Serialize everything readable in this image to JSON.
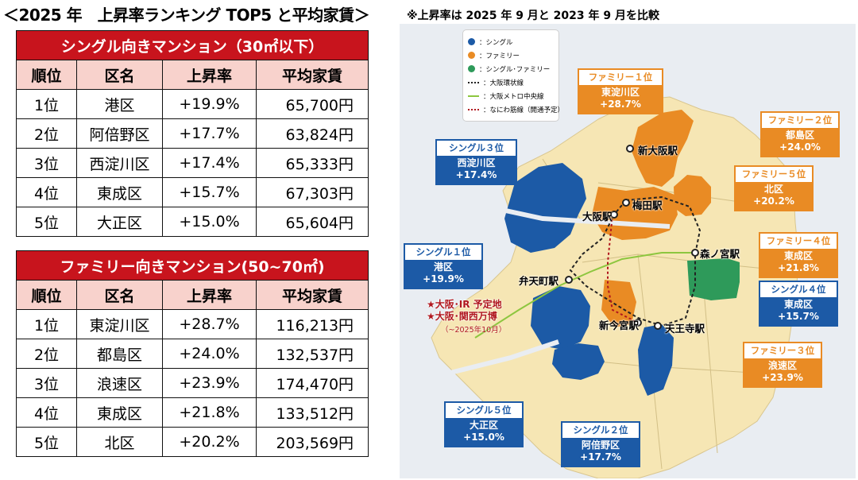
{
  "header": {
    "title": "＜2025 年　上昇率ランキング TOP5 と平均家賃＞",
    "note": "※上昇率は 2025 年 9 月と 2023 年 9 月を比較"
  },
  "single_table": {
    "caption": "シングル向きマンション（30㎡以下）",
    "columns": [
      "順位",
      "区名",
      "上昇率",
      "平均家賃"
    ],
    "rows": [
      [
        "1位",
        "港区",
        "+19.9%",
        "65,700円"
      ],
      [
        "2位",
        "阿倍野区",
        "+17.7%",
        "63,824円"
      ],
      [
        "3位",
        "西淀川区",
        "+17.4%",
        "65,333円"
      ],
      [
        "4位",
        "東成区",
        "+15.7%",
        "67,303円"
      ],
      [
        "5位",
        "大正区",
        "+15.0%",
        "65,604円"
      ]
    ]
  },
  "family_table": {
    "caption": "ファミリー向きマンション(50~70㎡)",
    "columns": [
      "順位",
      "区名",
      "上昇率",
      "平均家賃"
    ],
    "rows": [
      [
        "1位",
        "東淀川区",
        "+28.7%",
        "116,213円"
      ],
      [
        "2位",
        "都島区",
        "+24.0%",
        "132,537円"
      ],
      [
        "3位",
        "浪速区",
        "+23.9%",
        "174,470円"
      ],
      [
        "4位",
        "東成区",
        "+21.8%",
        "133,512円"
      ],
      [
        "5位",
        "北区",
        "+20.2%",
        "203,569円"
      ]
    ]
  },
  "legend": {
    "single": "：シングル",
    "family": "：ファミリー",
    "both": "：シングル･ファミリー",
    "loop_line": "：大阪環状線",
    "chuo_line": "：大阪メトロ中央線",
    "naniwa_line": "：なにわ筋線（開通予定）"
  },
  "colors": {
    "single": "#1c5aa6",
    "family": "#e98b24",
    "both": "#2e9a5a",
    "land": "#f6e6b4",
    "water": "#e9edf2",
    "header_red": "#c8141d",
    "header_pink": "#f8d2cc"
  },
  "map_tags": {
    "family1": {
      "head": "ファミリー１位",
      "name": "東淀川区",
      "rate": "+28.7%"
    },
    "family2": {
      "head": "ファミリー２位",
      "name": "都島区",
      "rate": "+24.0%"
    },
    "family5": {
      "head": "ファミリー５位",
      "name": "北区",
      "rate": "+20.2%"
    },
    "family4": {
      "head": "ファミリー４位",
      "name": "東成区",
      "rate": "+21.8%"
    },
    "family3": {
      "head": "ファミリー３位",
      "name": "浪速区",
      "rate": "+23.9%"
    },
    "single3": {
      "head": "シングル３位",
      "name": "西淀川区",
      "rate": "+17.4%"
    },
    "single1": {
      "head": "シングル１位",
      "name": "港区",
      "rate": "+19.9%"
    },
    "single4": {
      "head": "シングル４位",
      "name": "東成区",
      "rate": "+15.7%"
    },
    "single5": {
      "head": "シングル５位",
      "name": "大正区",
      "rate": "+15.0%"
    },
    "single2": {
      "head": "シングル２位",
      "name": "阿倍野区",
      "rate": "+17.7%"
    }
  },
  "stations": {
    "shin_osaka": "新大阪駅",
    "umeda": "梅田駅",
    "osaka": "大阪駅",
    "morinomiya": "森ノ宮駅",
    "bentencho": "弁天町駅",
    "shin_imamiya": "新今宮駅",
    "tennoji": "天王寺駅"
  },
  "landmarks": {
    "ir": "★大阪･IR 予定地",
    "expo": "★大阪･関西万博",
    "expo_note": "（~2025年10月）"
  }
}
